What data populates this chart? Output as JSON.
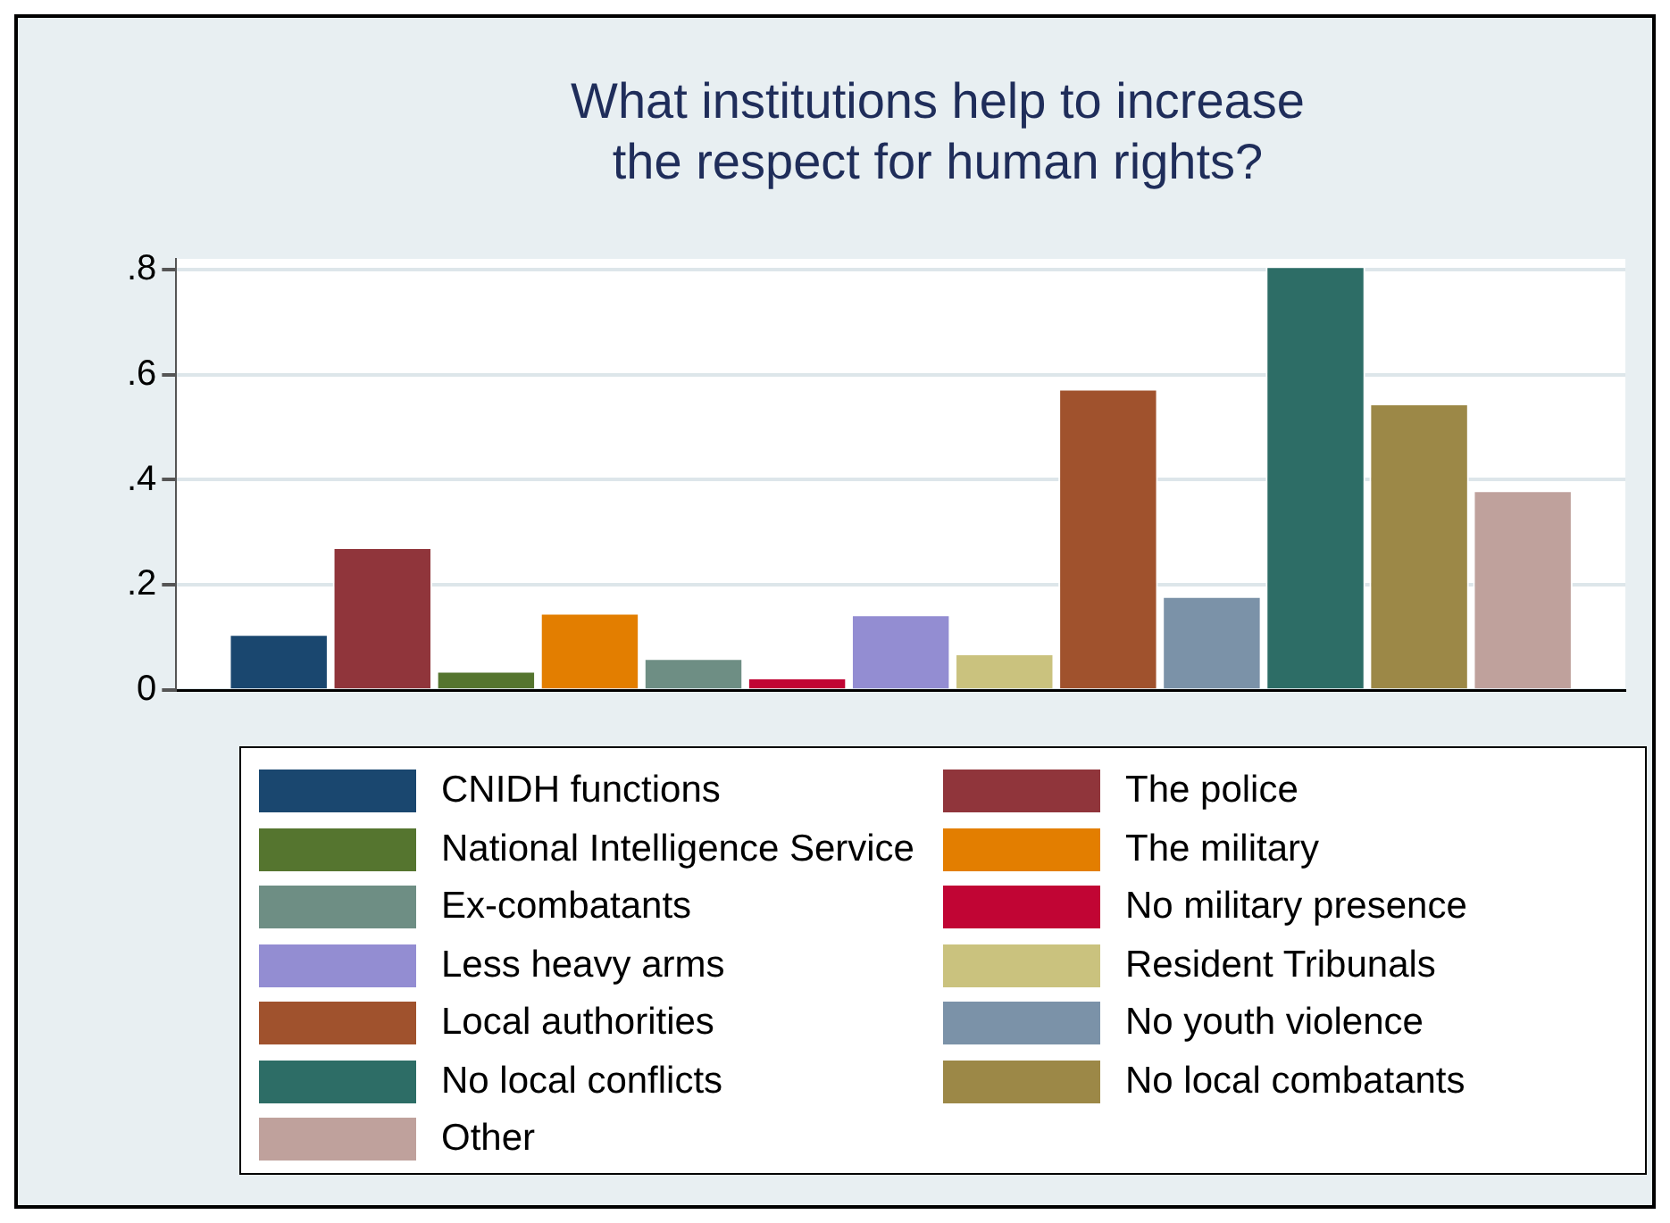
{
  "chart_data": {
    "type": "bar",
    "title": "What institutions help to increase\nthe respect for human rights?",
    "categories": [
      null
    ],
    "series": [
      {
        "name": "CNIDH functions",
        "color": "#1a476f",
        "values": [
          0.107
        ]
      },
      {
        "name": "The police",
        "color": "#90353b",
        "values": [
          0.272
        ]
      },
      {
        "name": "National Intelligence Service",
        "color": "#55752f",
        "values": [
          0.037
        ]
      },
      {
        "name": "The military",
        "color": "#e37e00",
        "values": [
          0.147
        ]
      },
      {
        "name": "Ex-combatants",
        "color": "#6e8e84",
        "values": [
          0.061
        ]
      },
      {
        "name": "No military presence",
        "color": "#c10534",
        "values": [
          0.024
        ]
      },
      {
        "name": "Less heavy arms",
        "color": "#938dd2",
        "values": [
          0.144
        ]
      },
      {
        "name": "Resident Tribunals",
        "color": "#cac27e",
        "values": [
          0.07
        ]
      },
      {
        "name": "Local authorities",
        "color": "#a0522d",
        "values": [
          0.573
        ]
      },
      {
        "name": "No youth violence",
        "color": "#7b92a8",
        "values": [
          0.179
        ]
      },
      {
        "name": "No local conflicts",
        "color": "#2d6d66",
        "values": [
          0.806
        ]
      },
      {
        "name": "No local combatants",
        "color": "#9c8847",
        "values": [
          0.545
        ]
      },
      {
        "name": "Other",
        "color": "#bfa19c",
        "values": [
          0.38
        ]
      }
    ],
    "ylim": [
      0,
      0.82
    ],
    "yticks": [
      {
        "value": 0,
        "label": "0"
      },
      {
        "value": 0.2,
        "label": ".2"
      },
      {
        "value": 0.4,
        "label": ".4"
      },
      {
        "value": 0.6,
        "label": ".6"
      },
      {
        "value": 0.8,
        "label": ".8"
      }
    ],
    "grid": "y",
    "legend": "bottom"
  }
}
